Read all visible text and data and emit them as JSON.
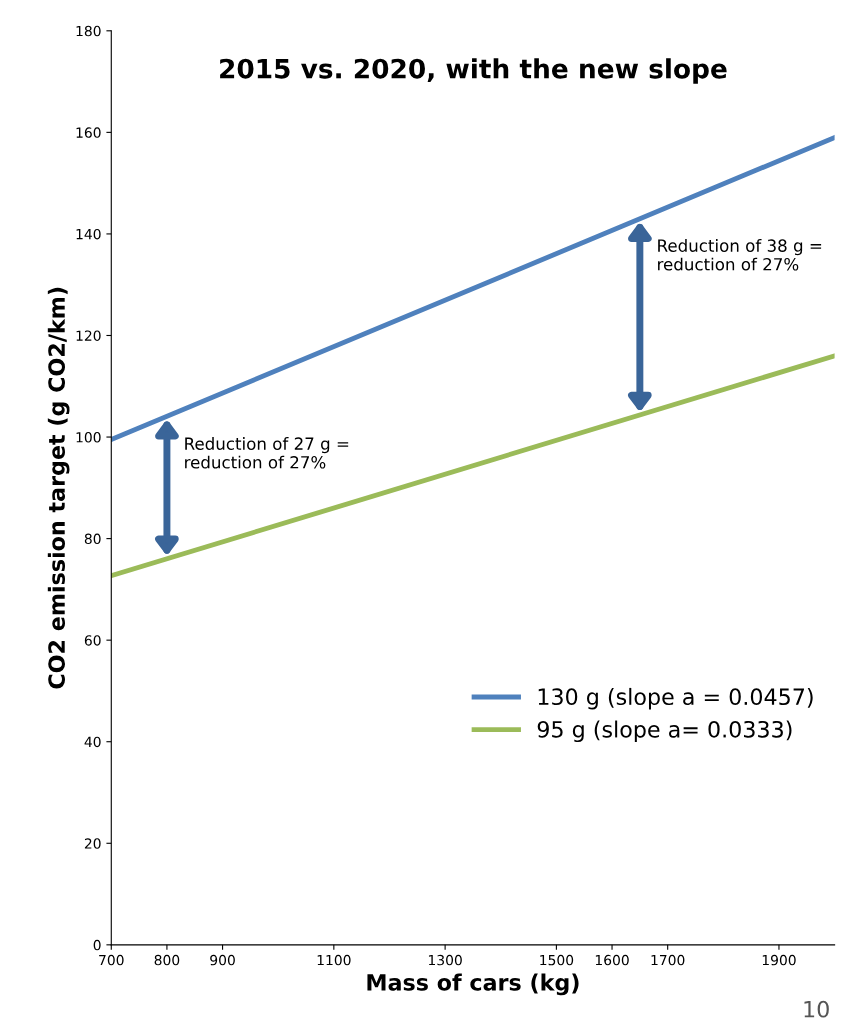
{
  "chart_data": {
    "type": "line",
    "title": "2015 vs. 2020, with the new slope",
    "xlabel": "Mass of cars (kg)",
    "ylabel": "CO2 emission target (g CO2/km)",
    "x": [
      700,
      2000
    ],
    "series": [
      {
        "name": "130 g (slope a = 0.0457)",
        "color": "#4f81bd",
        "values": [
          99.5,
          159
        ]
      },
      {
        "name": "95 g (slope a= 0.0333)",
        "color": "#9bbb59",
        "values": [
          72.7,
          116
        ]
      }
    ],
    "xlim": [
      700,
      2000
    ],
    "ylim": [
      0,
      180
    ],
    "xticks": [
      700,
      800,
      900,
      1100,
      1300,
      1500,
      1600,
      1700,
      1900
    ],
    "yticks": [
      0,
      20,
      40,
      60,
      80,
      100,
      120,
      140,
      160,
      180
    ],
    "annotations": [
      {
        "text": "Reduction of 27 g =\nreduction of 27%",
        "x": 800,
        "y": 104
      },
      {
        "text": "Reduction of 38 g =\nreduction of 27%",
        "x": 1650,
        "y": 143
      },
      "10"
    ],
    "legend": "bottom right",
    "grid": false,
    "marker": "none",
    "line_style": "solid"
  }
}
